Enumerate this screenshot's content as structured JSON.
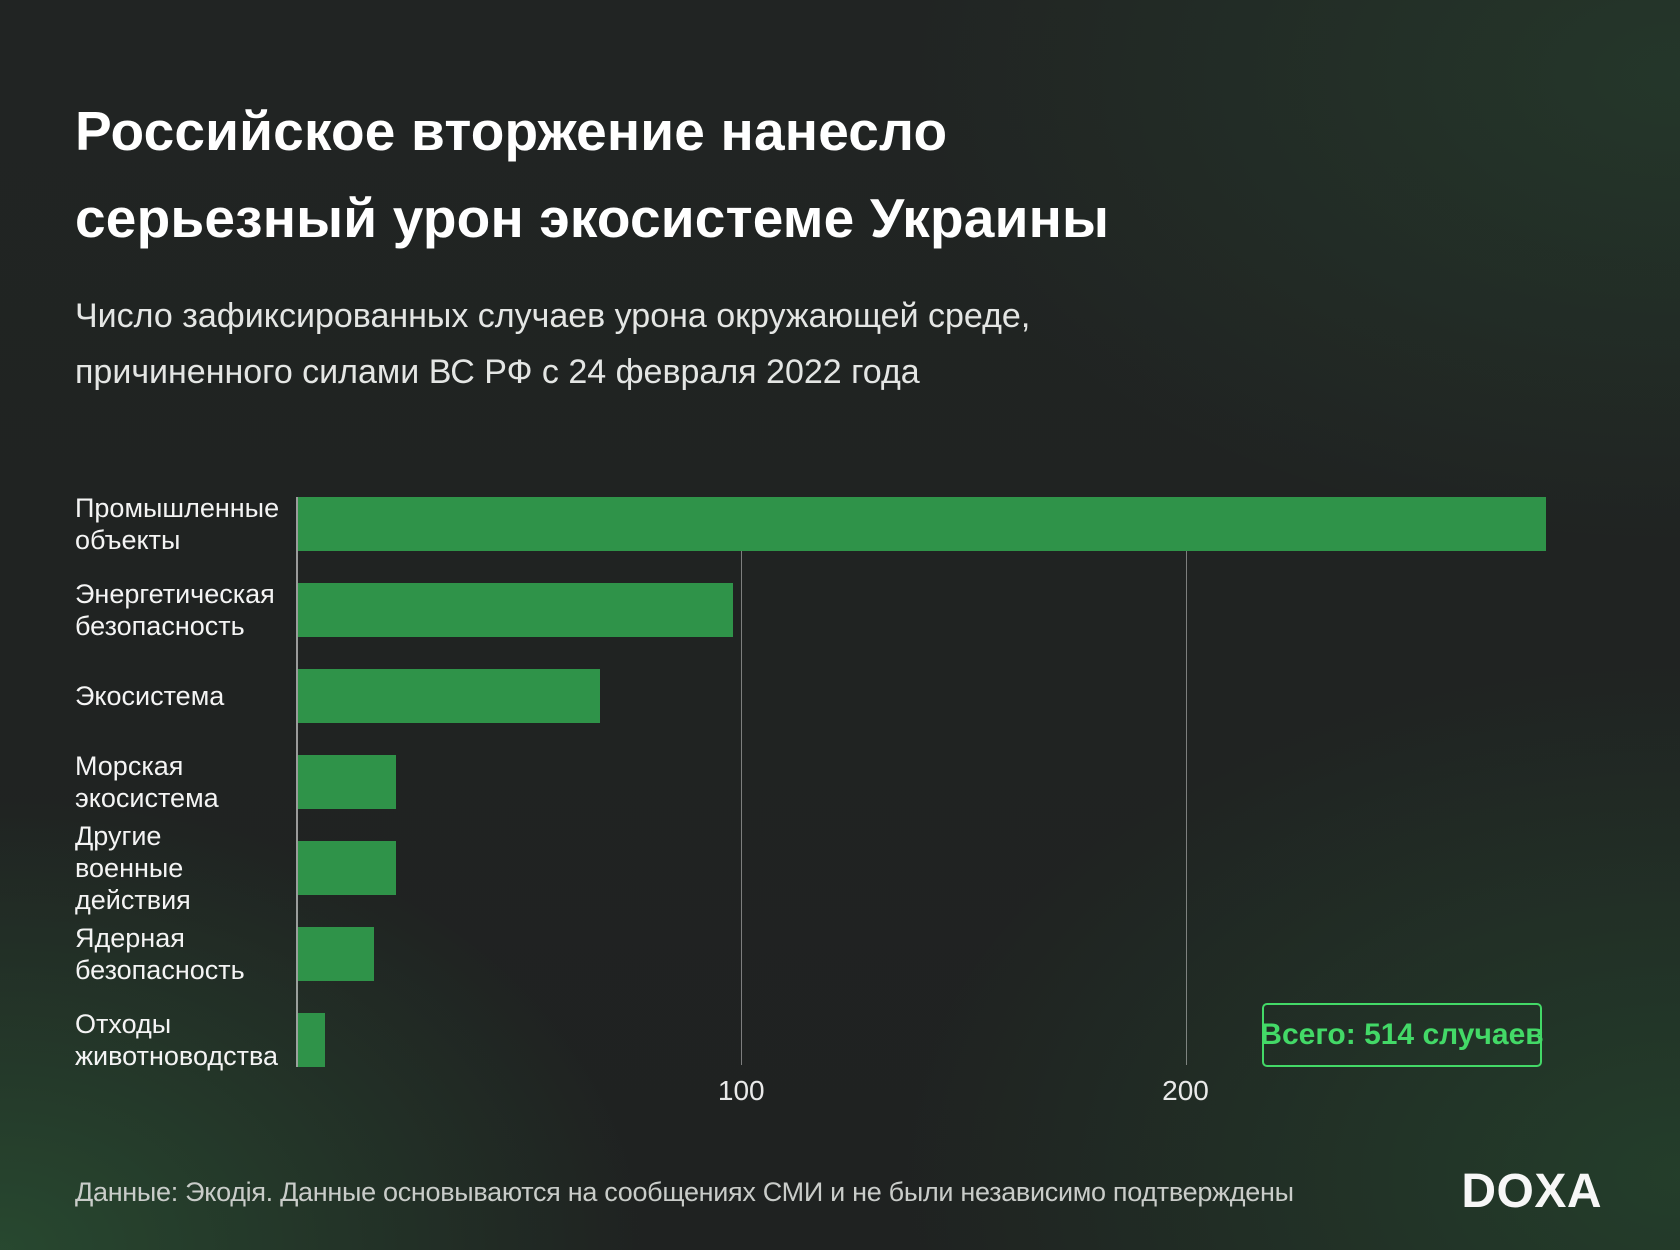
{
  "header": {
    "title_line1": "Российское вторжение нанесло",
    "title_line2": "серьезный урон экосистеме Украины",
    "subtitle_line1": "Число зафиксированных случаев урона окружающей среде,",
    "subtitle_line2": "причиненного силами ВС РФ с 24 февраля 2022 года"
  },
  "chart_data": {
    "type": "bar",
    "orientation": "horizontal",
    "title": "Число зафиксированных случаев урона окружающей среде, причиненного силами ВС РФ с 24 февраля 2022 года",
    "categories": [
      "Промышленные объекты",
      "Энергетическая безопасность",
      "Экосистема",
      "Морская экосистема",
      "Другие военные действия",
      "Ядерная безопасность",
      "Отходы животноводства"
    ],
    "values": [
      281,
      98,
      68,
      22,
      22,
      17,
      6
    ],
    "total": 514,
    "xlabel": "",
    "ylabel": "",
    "xlim": [
      0,
      296
    ],
    "xticks": [
      100,
      200
    ],
    "xtick_labels": [
      "100",
      "200"
    ],
    "grid": "vertical gridlines at ticks, behind bars",
    "legend": "none",
    "bar_color": "#2f9349"
  },
  "total_badge": {
    "label": "Всего: 514 случаев",
    "color": "#43d967"
  },
  "footer": {
    "source_note": "Данные: Экодія. Данные основываются на сообщениях СМИ и не были независимо подтверждены",
    "logo": "DOXA"
  },
  "colors": {
    "background": "#212423",
    "background_glow_green": "#2d6a3d",
    "bar_green": "#2f9349",
    "accent_green": "#43d967",
    "title_text": "#ffffff",
    "subtitle_text": "#e4e6e4",
    "label_text": "#f4f4f4",
    "tick_text": "#eaeaea",
    "source_text": "#c9ccc9",
    "axis_line": "rgba(255,255,255,0.55)",
    "gridline": "rgba(255,255,255,0.42)"
  }
}
